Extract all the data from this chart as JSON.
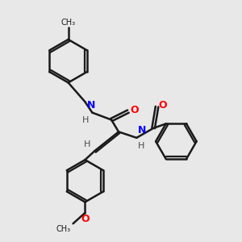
{
  "background_color": "#e8e8e8",
  "bond_color": "#1a1a1a",
  "atom_colors": {
    "N": "#0000ff",
    "O": "#ff0000",
    "C": "#1a1a1a",
    "H": "#4a4a4a"
  },
  "title": "",
  "figsize": [
    3.0,
    3.0
  ],
  "dpi": 100
}
